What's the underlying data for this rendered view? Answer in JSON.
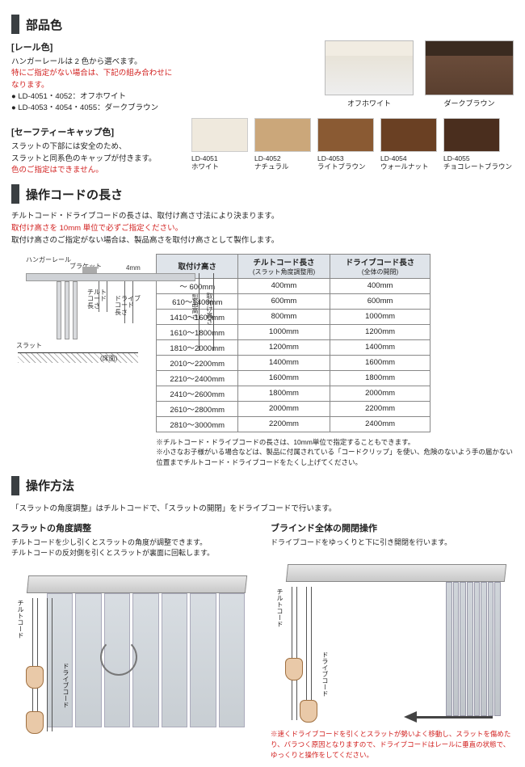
{
  "colors": {
    "section_bar": "#3a3f42",
    "warning_red": "#d2201f",
    "table_header_bg": "#dfe4ea",
    "table_border": "#888888",
    "diagram_rail": "#cfd2d6"
  },
  "section1": {
    "title": "部品色",
    "rail": {
      "heading": "[レール色]",
      "intro": "ハンガーレールは 2 色から選べます。",
      "note_red": "特にご指定がない場合は、下記の組み合わせになります。",
      "bullets": [
        "LD-4051・4052：オフホワイト",
        "LD-4053・4054・4055：ダークブラウン"
      ],
      "swatches": [
        {
          "label": "オフホワイト",
          "class": "offwhite"
        },
        {
          "label": "ダークブラウン",
          "class": "darkbrown"
        }
      ]
    },
    "cap": {
      "heading": "[セーフティーキャップ色]",
      "desc1": "スラットの下部には安全のため、",
      "desc2": "スラットと同系色のキャップが付きます。",
      "note_red": "色のご指定はできません。",
      "swatches": [
        {
          "code": "LD-4051",
          "name": "ホワイト",
          "color": "#efe9dd"
        },
        {
          "code": "LD-4052",
          "name": "ナチュラル",
          "color": "#cba77a"
        },
        {
          "code": "LD-4053",
          "name": "ライトブラウン",
          "color": "#8a5a33"
        },
        {
          "code": "LD-4054",
          "name": "ウォールナット",
          "color": "#6a4023"
        },
        {
          "code": "LD-4055",
          "name": "チョコレートブラウン",
          "color": "#4a2e1e"
        }
      ]
    }
  },
  "section2": {
    "title": "操作コードの長さ",
    "intro1": "チルトコード・ドライブコードの長さは、取付け高さ寸法により決まります。",
    "intro_red": "取付け高さを 10mm 単位で必ずご指定ください。",
    "intro2": "取付け高さのご指定がない場合は、製品高さを取付け高さとして製作します。",
    "diagram": {
      "labels": {
        "hanger": "ハンガーレール",
        "bracket": "ブラケット",
        "gap": "4mm",
        "tilt": "チルト\nコード\n長さ",
        "drive": "ドライブ\nコード\n長さ",
        "product_h": "製品高さ",
        "mount_h": "取付け高さ",
        "slat": "スラット",
        "floor": "(床面)"
      }
    },
    "table": {
      "headers": {
        "h": "取付け高さ",
        "tilt": "チルトコード長さ",
        "tilt_sub": "(スラット角度調整用)",
        "drive": "ドライブコード長さ",
        "drive_sub": "(全体の開閉)"
      },
      "rows": [
        [
          "〜 600mm",
          "400mm",
          "400mm"
        ],
        [
          "610〜1400mm",
          "600mm",
          "600mm"
        ],
        [
          "1410〜1600mm",
          "800mm",
          "1000mm"
        ],
        [
          "1610〜1800mm",
          "1000mm",
          "1200mm"
        ],
        [
          "1810〜2000mm",
          "1200mm",
          "1400mm"
        ],
        [
          "2010〜2200mm",
          "1400mm",
          "1600mm"
        ],
        [
          "2210〜2400mm",
          "1600mm",
          "1800mm"
        ],
        [
          "2410〜2600mm",
          "1800mm",
          "2000mm"
        ],
        [
          "2610〜2800mm",
          "2000mm",
          "2200mm"
        ],
        [
          "2810〜3000mm",
          "2200mm",
          "2400mm"
        ]
      ]
    },
    "notes": [
      "チルトコード・ドライブコードの長さは、10mm単位で指定することもできます。",
      "小さなお子様がいる場合などは、製品に付属されている「コードクリップ」を使い、危険のないよう手の届かない位置までチルトコード・ドライブコードをたくし上げてください。"
    ]
  },
  "section3": {
    "title": "操作方法",
    "intro": "「スラットの角度調整」はチルトコードで、「スラットの開閉」をドライブコードで行います。",
    "left": {
      "title": "スラットの角度調整",
      "desc": "チルトコードを少し引くとスラットの角度が調整できます。\nチルトコードの反対側を引くとスラットが裏面に回転します。",
      "label_tilt": "チルトコード",
      "label_drive": "ドライブコード"
    },
    "right": {
      "title": "ブラインド全体の開閉操作",
      "desc": "ドライブコードをゆっくりと下に引き開閉を行います。",
      "label_tilt": "チルトコード",
      "label_drive": "ドライブコード",
      "warning": "※速くドライブコードを引くとスラットが勢いよく移動し、スラットを傷めたり、バラつく原因となりますので、ドライブコードはレールに垂直の状態で、ゆっくりと操作をしてください。"
    }
  }
}
